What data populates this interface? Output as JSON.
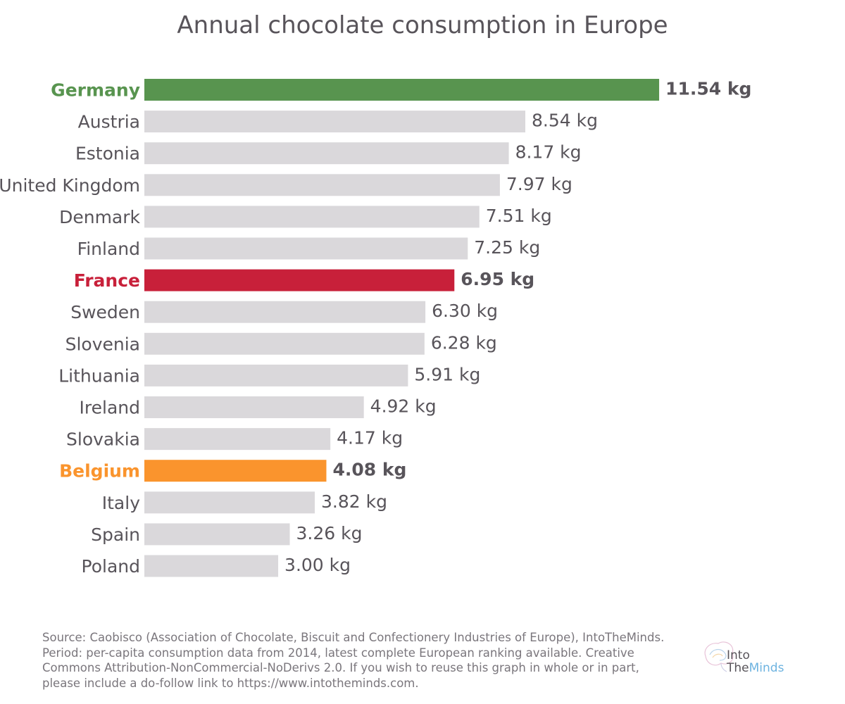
{
  "chart_data": {
    "type": "bar",
    "orientation": "horizontal",
    "title": "Annual chocolate consumption in Europe",
    "unit": "kg",
    "categories": [
      "Germany",
      "Austria",
      "Estonia",
      "United Kingdom",
      "Denmark",
      "Finland",
      "France",
      "Sweden",
      "Slovenia",
      "Lithuania",
      "Ireland",
      "Slovakia",
      "Belgium",
      "Italy",
      "Spain",
      "Poland"
    ],
    "values": [
      11.54,
      8.54,
      8.17,
      7.97,
      7.51,
      7.25,
      6.95,
      6.3,
      6.28,
      5.91,
      4.92,
      4.17,
      4.08,
      3.82,
      3.26,
      3.0
    ],
    "value_labels": [
      "11.54 kg",
      "8.54 kg",
      "8.17 kg",
      "7.97 kg",
      "7.51 kg",
      "7.25 kg",
      "6.95 kg",
      "6.30 kg",
      "6.28 kg",
      "5.91 kg",
      "4.92 kg",
      "4.17 kg",
      "4.08 kg",
      "3.82 kg",
      "3.26 kg",
      "3.00 kg"
    ],
    "highlighted": {
      "Germany": "#58944f",
      "France": "#c8203a",
      "Belgium": "#fa942d"
    },
    "default_bar_color": "#dad8db",
    "grid": false,
    "legend": "none"
  },
  "source_text": "Source: Caobisco (Association of Chocolate, Biscuit and Confectionery Industries of Europe), IntoTheMinds. Period: per-capita consumption data from 2014, latest complete European ranking available. Creative Commons Attribution-NonCommercial-NoDerivs 2.0. If you wish to reuse this graph in whole or in part, please include a do-follow link to https://www.intotheminds.com.",
  "logo": {
    "line1": "Into",
    "line2a": "The",
    "line2b": "Minds"
  },
  "colors": {
    "text": "#58545a",
    "muted": "#7a767c"
  }
}
